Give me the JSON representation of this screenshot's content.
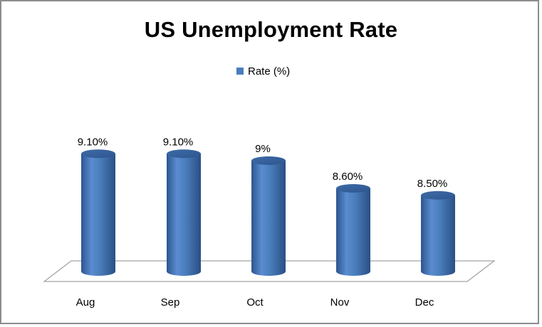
{
  "chart_data": {
    "type": "bar",
    "title": "US Unemployment Rate",
    "categories": [
      "Aug",
      "Sep",
      "Oct",
      "Nov",
      "Dec"
    ],
    "series": [
      {
        "name": "Rate (%)",
        "values": [
          9.1,
          9.1,
          9.0,
          8.6,
          8.5
        ],
        "data_labels": [
          "9.10%",
          "9.10%",
          "9%",
          "8.60%",
          "8.50%"
        ],
        "color": "#4a7ebb"
      }
    ],
    "ylim": [
      7.4,
      9.4
    ],
    "grid": false,
    "legend_position": "top",
    "style": "3d-cylinder"
  }
}
